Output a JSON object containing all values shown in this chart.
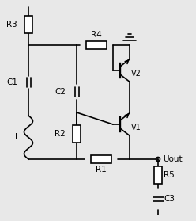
{
  "bg_color": "#e8e8e8",
  "line_color": "#000000",
  "line_width": 1.2,
  "text_color": "#000000",
  "font_size": 7.5,
  "components": {
    "L_label": "L",
    "C1_label": "C1",
    "C2_label": "C2",
    "C3_label": "C3",
    "R1_label": "R1",
    "R2_label": "R2",
    "R3_label": "R3",
    "R4_label": "R4",
    "R5_label": "R5",
    "V1_label": "V1",
    "V2_label": "V2",
    "Uout_label": "Uout"
  }
}
